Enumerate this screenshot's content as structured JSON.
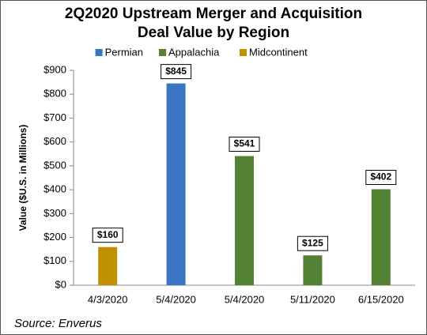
{
  "chart_data": {
    "type": "bar",
    "title": [
      "2Q2020 Upstream Merger and Acquisition",
      "Deal Value by Region"
    ],
    "categories": [
      "4/3/2020",
      "5/4/2020",
      "5/4/2020",
      "5/11/2020",
      "6/15/2020"
    ],
    "series": [
      {
        "name": "Permian",
        "color": "#3a75c4",
        "values": [
          null,
          845,
          null,
          null,
          null
        ],
        "value_labels": [
          null,
          "$845",
          null,
          null,
          null
        ]
      },
      {
        "name": "Appalachia",
        "color": "#548235",
        "values": [
          null,
          null,
          541,
          125,
          402
        ],
        "value_labels": [
          null,
          null,
          "$541",
          "$125",
          "$402"
        ]
      },
      {
        "name": "Midcontinent",
        "color": "#bf9000",
        "values": [
          160,
          null,
          null,
          null,
          null
        ],
        "value_labels": [
          "$160",
          null,
          null,
          null,
          null
        ]
      }
    ],
    "ylabel": "Value ($U.S. in Millions)",
    "ylim": [
      0,
      900
    ],
    "yticks": [
      {
        "value": 0,
        "label": "$0"
      },
      {
        "value": 100,
        "label": "$100"
      },
      {
        "value": 200,
        "label": "$200"
      },
      {
        "value": 300,
        "label": "$300"
      },
      {
        "value": 400,
        "label": "$400"
      },
      {
        "value": 500,
        "label": "$500"
      },
      {
        "value": 600,
        "label": "$600"
      },
      {
        "value": 700,
        "label": "$700"
      },
      {
        "value": 800,
        "label": "$800"
      },
      {
        "value": 900,
        "label": "$900"
      }
    ],
    "grid": false,
    "legend": "top",
    "source": "Source: Enverus"
  }
}
